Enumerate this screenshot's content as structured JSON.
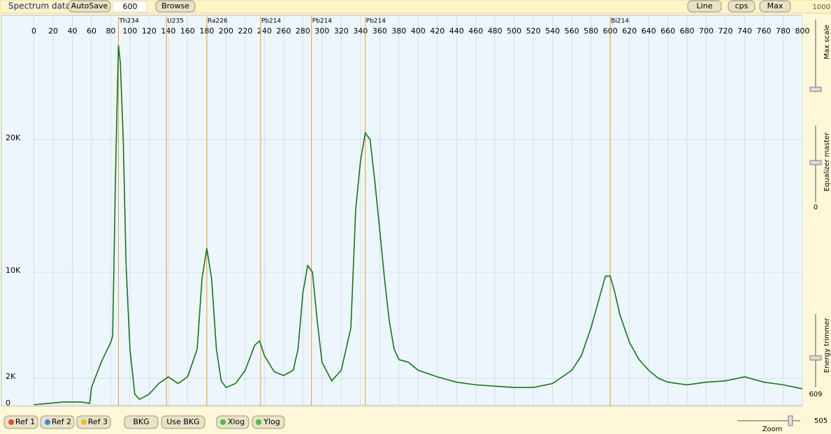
{
  "toolbar": {
    "title": "Spectrum data",
    "autosave": "AutoSave",
    "input": "600",
    "browse": "Browse",
    "line": "Line",
    "cps": "cps",
    "max": "Max"
  },
  "side_panel": {
    "max_value": "1000",
    "max_scale": "Max scale",
    "equalizer": "Equalizer master",
    "equalizer_value": "0",
    "energy_trimmer": "Energy trimmer",
    "energy_value": "609",
    "zoom": "Zoom",
    "zoom_value": "505"
  },
  "bottom_bar": {
    "ref1": "Ref 1",
    "ref2": "Ref 2",
    "ref3": "Ref 3",
    "bkg": "BKG",
    "use_bkg": "Use BKG",
    "xlog": "Xlog",
    "ylog": "Ylog"
  },
  "chart_data": {
    "type": "line",
    "x": [
      0,
      30,
      50,
      58,
      60,
      70,
      80,
      82,
      85,
      88,
      90,
      93,
      96,
      100,
      105,
      110,
      120,
      130,
      140,
      150,
      160,
      170,
      175,
      180,
      185,
      190,
      195,
      200,
      210,
      220,
      230,
      235,
      240,
      250,
      260,
      270,
      275,
      280,
      285,
      290,
      295,
      300,
      310,
      320,
      330,
      335,
      340,
      345,
      350,
      355,
      360,
      365,
      370,
      375,
      380,
      390,
      400,
      420,
      440,
      460,
      480,
      500,
      520,
      540,
      560,
      570,
      580,
      590,
      595,
      600,
      605,
      610,
      620,
      630,
      640,
      650,
      660,
      680,
      700,
      720,
      740,
      760,
      780,
      800
    ],
    "series": [
      {
        "color": "#117711",
        "values": [
          0,
          200,
          200,
          100,
          1300,
          3200,
          4700,
          5200,
          17400,
          27100,
          25800,
          20000,
          10500,
          4200,
          800,
          400,
          800,
          1600,
          2100,
          1600,
          2100,
          4200,
          9500,
          11800,
          9500,
          4200,
          1800,
          1300,
          1600,
          2600,
          4500,
          4800,
          3700,
          2500,
          2200,
          2600,
          4200,
          8400,
          10500,
          10000,
          6300,
          3200,
          1800,
          2600,
          5800,
          14700,
          18400,
          20500,
          20000,
          16800,
          13200,
          9500,
          6300,
          4200,
          3400,
          3200,
          2600,
          2100,
          1700,
          1500,
          1400,
          1300,
          1300,
          1600,
          2600,
          3700,
          5800,
          8400,
          9700,
          9700,
          8400,
          6800,
          4700,
          3400,
          2600,
          2000,
          1700,
          1500,
          1700,
          1800,
          2100,
          1700,
          1500,
          1200
        ]
      }
    ],
    "xlim": [
      -4,
      800
    ],
    "xticks": [
      0,
      20,
      40,
      60,
      80,
      100,
      120,
      140,
      160,
      180,
      200,
      220,
      240,
      260,
      280,
      300,
      320,
      340,
      360,
      380,
      400,
      420,
      440,
      460,
      480,
      500,
      520,
      540,
      560,
      580,
      600,
      620,
      640,
      660,
      680,
      700,
      720,
      740,
      760,
      780,
      800
    ],
    "ylim": [
      -105,
      29370
    ],
    "yticks": [
      0,
      {
        "value": 2000,
        "label": "2K"
      },
      {
        "value": 10000,
        "label": "10K"
      },
      {
        "value": 20000,
        "label": "20K"
      }
    ],
    "grid": true,
    "markers": [
      {
        "label": "Th234",
        "x": 88
      },
      {
        "label": "U235",
        "x": 138
      },
      {
        "label": "Ra226",
        "x": 180
      },
      {
        "label": "Pb214",
        "x": 236
      },
      {
        "label": "Pb214",
        "x": 289
      },
      {
        "label": "Pb214",
        "x": 345
      },
      {
        "label": "Bi214",
        "x": 600
      }
    ]
  }
}
